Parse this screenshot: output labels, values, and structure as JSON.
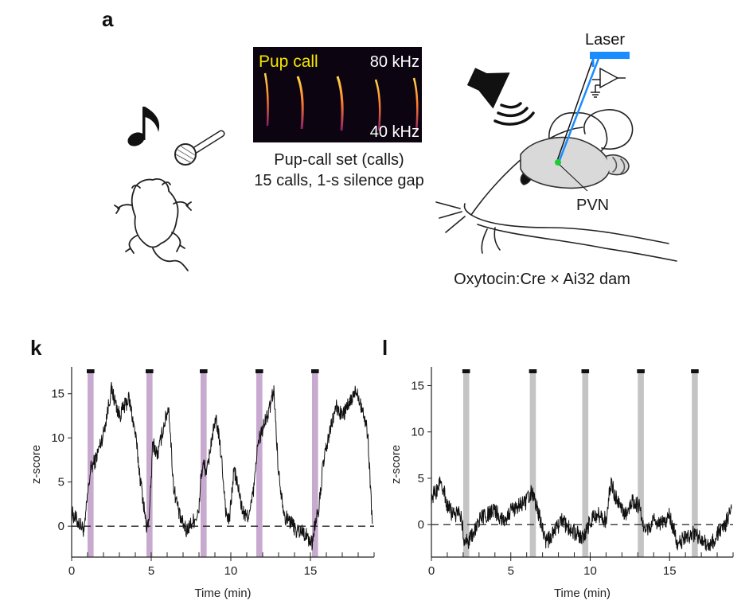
{
  "panel_a": {
    "letter": "a",
    "spectrogram": {
      "label": "Pup call",
      "top_freq": "80 kHz",
      "bottom_freq": "40 kHz",
      "label_color": "#f2e600"
    },
    "caption_line1": "Pup-call set (calls)",
    "caption_line2": "15 calls, 1-s silence gap",
    "laser_label": "Laser",
    "laser_color": "#1a8cff",
    "region_label": "PVN",
    "region_color": "#1fcc33",
    "strain_caption": "Oxytocin:Cre × Ai32 dam",
    "icons": [
      "music-note-icon",
      "microphone-icon",
      "pup-icon",
      "speaker-icon",
      "mouse-head-icon",
      "amplifier-icon"
    ]
  },
  "chart_data": [
    {
      "type": "line",
      "panel": "k",
      "xlabel": "Time (min)",
      "ylabel": "z-score",
      "xlim": [
        0,
        19
      ],
      "ylim": [
        -3.5,
        17.5
      ],
      "xticks": [
        0,
        5,
        10,
        15
      ],
      "yticks": [
        0,
        5,
        10,
        15
      ],
      "baseline": 0,
      "stim_color": "#c8a9cf",
      "stim_onsets": [
        1.0,
        4.7,
        8.1,
        11.6,
        15.1
      ],
      "stim_duration": 0.38,
      "x": [
        0,
        0.4,
        0.8,
        1.0,
        1.2,
        1.5,
        2.0,
        2.5,
        3.0,
        3.3,
        3.6,
        4.0,
        4.3,
        4.6,
        4.7,
        4.9,
        5.1,
        5.4,
        5.8,
        6.1,
        6.4,
        6.8,
        7.2,
        7.6,
        8.0,
        8.1,
        8.3,
        8.5,
        8.8,
        9.1,
        9.4,
        9.7,
        9.9,
        10.2,
        10.5,
        10.7,
        10.9,
        11.2,
        11.5,
        11.6,
        11.8,
        12.1,
        12.4,
        12.7,
        13.0,
        13.4,
        13.8,
        14.1,
        14.5,
        14.9,
        15.1,
        15.3,
        15.5,
        15.8,
        16.2,
        16.6,
        17.0,
        17.5,
        17.9,
        18.3,
        18.6,
        18.9
      ],
      "values": [
        1.5,
        0.5,
        -0.5,
        3.5,
        6.5,
        7.5,
        10.5,
        15.5,
        12.5,
        13.5,
        14.5,
        10.5,
        5.5,
        1.5,
        -0.5,
        1.5,
        9.5,
        8.0,
        11.5,
        13.5,
        4.5,
        1.0,
        -0.5,
        0.5,
        1.5,
        5.5,
        7.0,
        6.0,
        10.0,
        12.0,
        8.0,
        1.5,
        0.5,
        6.5,
        4.0,
        2.0,
        1.0,
        1.5,
        5.0,
        8.0,
        10.0,
        11.5,
        13.0,
        15.5,
        6.0,
        1.0,
        0.5,
        -0.5,
        -0.5,
        -1.5,
        -2.0,
        0.5,
        1.5,
        7.0,
        10.5,
        13.5,
        12.5,
        14.0,
        15.5,
        13.0,
        10.5,
        0.0
      ]
    },
    {
      "type": "line",
      "panel": "l",
      "xlabel": "Time (min)",
      "ylabel": "z-score",
      "xlim": [
        0,
        19
      ],
      "ylim": [
        -3.5,
        16.5
      ],
      "xticks": [
        0,
        5,
        10,
        15
      ],
      "yticks": [
        0,
        5,
        10,
        15
      ],
      "baseline": 0,
      "stim_color": "#c4c4c4",
      "stim_onsets": [
        2.0,
        6.2,
        9.5,
        13.0,
        16.4
      ],
      "stim_duration": 0.38,
      "x": [
        0,
        0.3,
        0.6,
        1.0,
        1.4,
        1.8,
        2.1,
        2.5,
        3.0,
        3.5,
        4.0,
        4.5,
        5.0,
        5.5,
        6.0,
        6.3,
        6.8,
        7.2,
        7.7,
        8.2,
        8.7,
        9.2,
        9.6,
        10.0,
        10.5,
        11.0,
        11.3,
        11.7,
        12.2,
        12.7,
        13.1,
        13.5,
        14.0,
        14.5,
        15.0,
        15.5,
        16.0,
        16.5,
        17.0,
        17.5,
        18.0,
        18.5,
        18.9
      ],
      "values": [
        3.0,
        3.5,
        5.0,
        2.0,
        1.0,
        1.5,
        -2.0,
        -1.5,
        0.5,
        1.0,
        1.5,
        0.5,
        1.5,
        2.0,
        2.5,
        3.5,
        1.0,
        -2.0,
        -1.0,
        0.5,
        -0.5,
        -1.0,
        -1.5,
        0.5,
        1.0,
        0.5,
        4.5,
        2.5,
        1.0,
        2.5,
        2.0,
        -1.0,
        0.5,
        0.0,
        1.0,
        -2.0,
        -1.5,
        -1.0,
        -1.5,
        -2.5,
        -1.0,
        0.0,
        1.5
      ]
    }
  ]
}
